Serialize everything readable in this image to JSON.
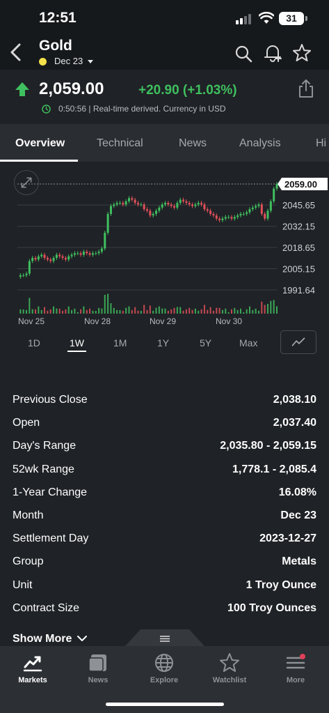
{
  "status_bar": {
    "time": "12:51",
    "battery": "31"
  },
  "header": {
    "title": "Gold",
    "contract": "Dec 23"
  },
  "quote": {
    "price": "2,059.00",
    "change": "+20.90 (+1.03%)",
    "realtime_note": "0:50:56 | Real-time derived. Currency in USD"
  },
  "tabs": [
    {
      "label": "Overview",
      "active": true
    },
    {
      "label": "Technical"
    },
    {
      "label": "News"
    },
    {
      "label": "Analysis"
    },
    {
      "label": "Hi"
    }
  ],
  "chart_data": {
    "type": "candlestick",
    "y_ticks": [
      "2045.65",
      "2032.15",
      "2018.65",
      "2005.15",
      "1991.64"
    ],
    "current_price_label": "2059.00",
    "x_labels": [
      "Nov 25",
      "Nov 28",
      "Nov 29",
      "Nov 30"
    ],
    "ylim": [
      1991.64,
      2059.0
    ],
    "close_series": [
      2000,
      2001,
      2001,
      2002,
      2010,
      2012,
      2011,
      2013,
      2014,
      2012,
      2011,
      2010,
      2012,
      2014,
      2013,
      2012,
      2011,
      2013,
      2014,
      2015,
      2015,
      2014,
      2016,
      2015,
      2014,
      2015,
      2015,
      2016,
      2018,
      2028,
      2040,
      2045,
      2046,
      2047,
      2047,
      2046,
      2048,
      2050,
      2049,
      2047,
      2046,
      2046,
      2043,
      2042,
      2039,
      2040,
      2042,
      2044,
      2046,
      2047,
      2046,
      2045,
      2044,
      2047,
      2049,
      2048,
      2047,
      2046,
      2045,
      2046,
      2047,
      2046,
      2043,
      2042,
      2040,
      2039,
      2037,
      2036,
      2037,
      2038,
      2038,
      2037,
      2038,
      2039,
      2040,
      2040,
      2041,
      2043,
      2044,
      2045,
      2046,
      2040,
      2037,
      2042,
      2048,
      2056,
      2059
    ],
    "colors": {
      "up": "#3fbf5f",
      "down": "#e0505a",
      "grid": "#3a3e43"
    }
  },
  "range_buttons": [
    {
      "label": "1D"
    },
    {
      "label": "1W",
      "active": true
    },
    {
      "label": "1M"
    },
    {
      "label": "1Y"
    },
    {
      "label": "5Y"
    },
    {
      "label": "Max"
    }
  ],
  "stats": [
    {
      "label": "Previous Close",
      "value": "2,038.10"
    },
    {
      "label": "Open",
      "value": "2,037.40"
    },
    {
      "label": "Day's Range",
      "value": "2,035.80 - 2,059.15"
    },
    {
      "label": "52wk Range",
      "value": "1,778.1 - 2,085.4"
    },
    {
      "label": "1-Year Change",
      "value": "16.08%"
    },
    {
      "label": "Month",
      "value": "Dec 23"
    },
    {
      "label": "Settlement Day",
      "value": "2023-12-27"
    },
    {
      "label": "Group",
      "value": "Metals"
    },
    {
      "label": "Unit",
      "value": "1 Troy Ounce"
    },
    {
      "label": "Contract Size",
      "value": "100 Troy Ounces"
    }
  ],
  "show_more": "Show More",
  "bottom_nav": [
    {
      "label": "Markets",
      "icon": "markets-icon",
      "active": true
    },
    {
      "label": "News",
      "icon": "news-icon"
    },
    {
      "label": "Explore",
      "icon": "globe-icon"
    },
    {
      "label": "Watchlist",
      "icon": "star-icon"
    },
    {
      "label": "More",
      "icon": "menu-icon"
    }
  ],
  "colors": {
    "positive": "#3fbf5f",
    "negative": "#e0505a",
    "background": "#1f2226",
    "notification_dot": "#e0405a"
  }
}
